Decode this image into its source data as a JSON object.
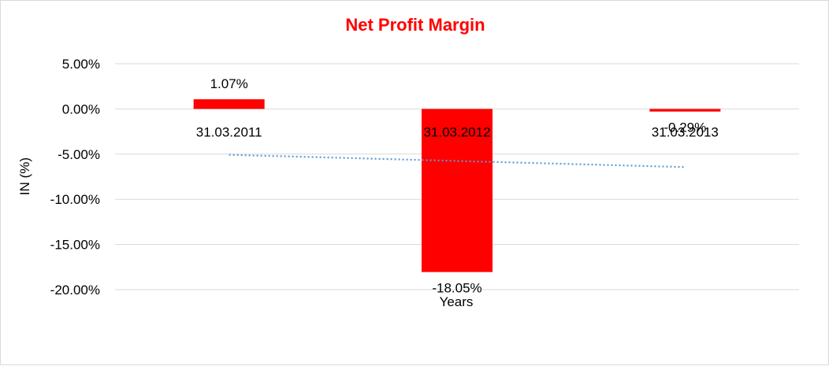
{
  "chart_data": {
    "type": "bar",
    "title": "Net Profit Margin",
    "xlabel": "Years",
    "ylabel": "IN (%)",
    "categories": [
      "31.03.2011",
      "31.03.2012",
      "31.03.2013"
    ],
    "values": [
      1.07,
      -18.05,
      -0.29
    ],
    "data_labels": [
      "1.07%",
      "-18.05%",
      "-0.29%"
    ],
    "ylim": [
      -20,
      5
    ],
    "yticks": [
      5,
      0,
      -5,
      -10,
      -15,
      -20
    ],
    "ytick_labels": [
      "5.00%",
      "0.00%",
      "-5.00%",
      "-10.00%",
      "-15.00%",
      "-20.00%"
    ],
    "grid": true,
    "trendline": {
      "type": "linear",
      "style": "dotted"
    },
    "colors": {
      "bar": "#ff0000",
      "title": "#ff0000",
      "trendline": "#5b9bd5",
      "grid": "#d9d9d9"
    }
  }
}
